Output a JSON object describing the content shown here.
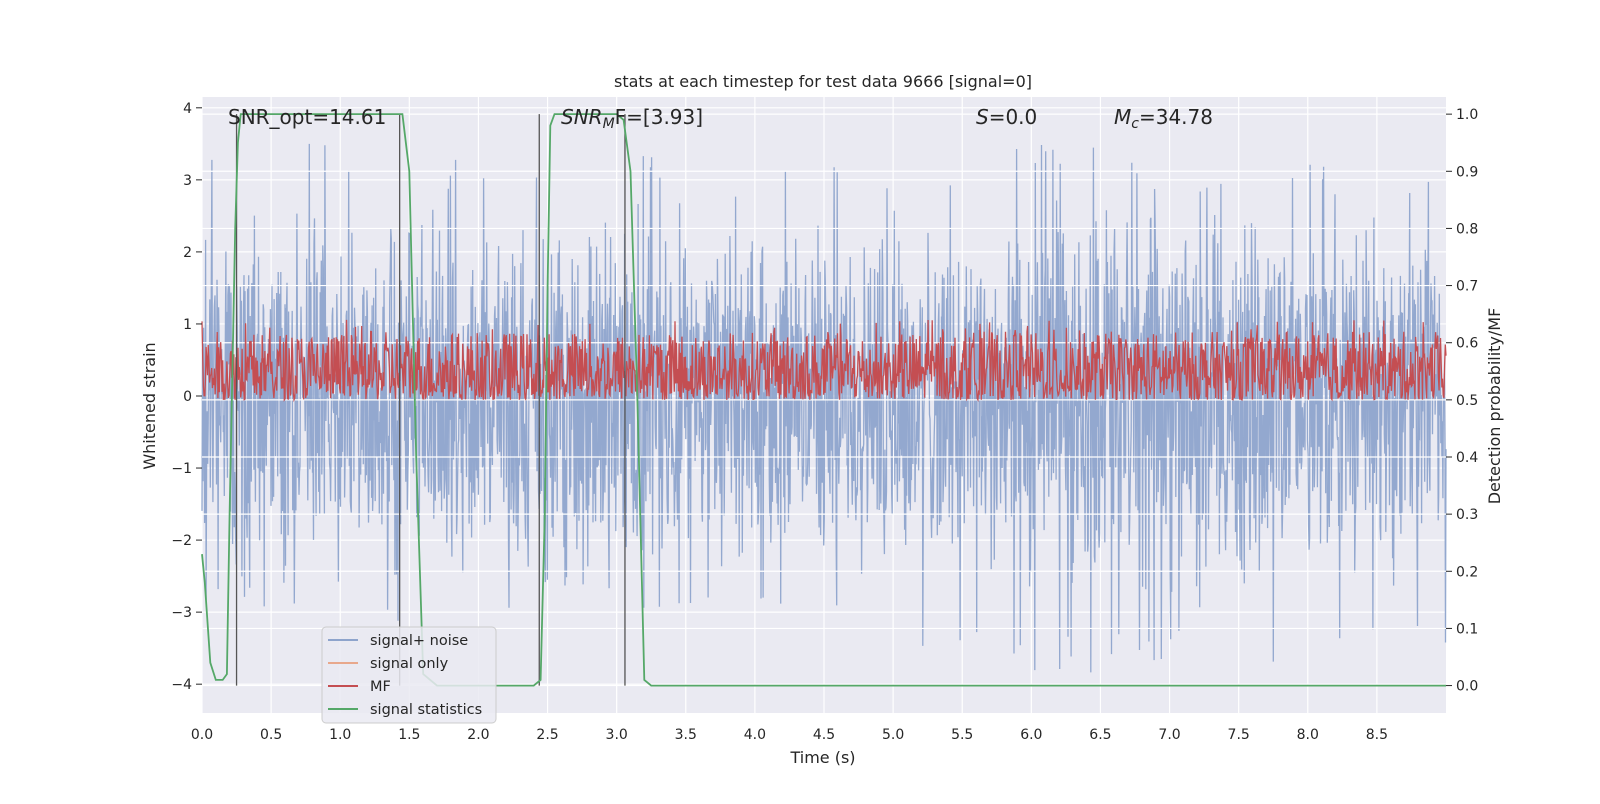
{
  "chart_data": {
    "type": "line",
    "title": "stats at each timestep for test data 9666 [signal=0]",
    "xlabel": "Time (s)",
    "ylabel": "Whitened strain",
    "y2label": "Detection probability/MF",
    "xlim": [
      0.0,
      9.0
    ],
    "ylim": [
      -4.4,
      4.15
    ],
    "y2lim": [
      -0.048,
      1.03
    ],
    "xticks": [
      "0.0",
      "0.5",
      "1.0",
      "1.5",
      "2.0",
      "2.5",
      "3.0",
      "3.5",
      "4.0",
      "4.5",
      "5.0",
      "5.5",
      "6.0",
      "6.5",
      "7.0",
      "7.5",
      "8.0",
      "8.5"
    ],
    "yticks": [
      "−4",
      "−3",
      "−2",
      "−1",
      "0",
      "1",
      "2",
      "3",
      "4"
    ],
    "y2ticks": [
      "0.0",
      "0.1",
      "0.2",
      "0.3",
      "0.4",
      "0.5",
      "0.6",
      "0.7",
      "0.8",
      "0.9",
      "1.0"
    ],
    "grid": true,
    "legend_position": "lower-left",
    "annotations": {
      "snr_opt": "SNR_opt=14.61",
      "snr_mf_sym": "SNR",
      "snr_mf_sub": "M",
      "snr_mf_rest": "F=[3.93]",
      "s_sym": "S",
      "s_rest": "=0.0",
      "mc_sym": "M",
      "mc_sub": "c",
      "mc_rest": "=34.78"
    },
    "series": [
      {
        "name": "signal+ noise",
        "color": "#8ea4cc",
        "envelope_note": "dense noise, whitened strain",
        "x": [
          0.0,
          0.5,
          1.0,
          1.5,
          2.0,
          2.5,
          3.0,
          3.5,
          4.0,
          4.5,
          5.0,
          5.5,
          6.0,
          6.5,
          7.0,
          7.5,
          8.0,
          8.5,
          9.0
        ],
        "max": [
          3.6,
          3.5,
          3.5,
          3.3,
          3.4,
          3.5,
          3.8,
          3.0,
          3.1,
          3.3,
          3.0,
          3.2,
          3.6,
          3.5,
          3.3,
          3.2,
          3.3,
          3.2,
          3.3
        ],
        "min": [
          -3.1,
          -3.0,
          -3.2,
          -3.4,
          -3.0,
          -3.0,
          -3.3,
          -3.2,
          -3.2,
          -3.3,
          -3.4,
          -3.6,
          -3.9,
          -3.9,
          -3.8,
          -4.0,
          -3.6,
          -3.5,
          -3.8
        ]
      },
      {
        "name": "signal only",
        "color": "#e8a88c",
        "x": [
          0.0,
          9.0
        ],
        "y": [
          0.0,
          0.0
        ]
      },
      {
        "name": "MF",
        "color": "#c44e52",
        "axis": "right",
        "baseline": 0.52,
        "band": [
          0.5,
          0.62
        ],
        "peak": 0.64
      },
      {
        "name": "signal statistics",
        "color": "#55a868",
        "axis": "right",
        "x": [
          0.0,
          0.02,
          0.06,
          0.1,
          0.15,
          0.18,
          0.2,
          0.22,
          0.24,
          0.26,
          0.28,
          0.3,
          0.32,
          0.35,
          0.5,
          1.0,
          1.4,
          1.45,
          1.5,
          1.55,
          1.6,
          1.7,
          2.0,
          2.3,
          2.4,
          2.45,
          2.48,
          2.5,
          2.52,
          2.55,
          2.6,
          3.0,
          3.05,
          3.1,
          3.15,
          3.2,
          3.25,
          3.3,
          4.0,
          9.0
        ],
        "y": [
          0.23,
          0.18,
          0.04,
          0.01,
          0.01,
          0.02,
          0.3,
          0.55,
          0.8,
          0.95,
          1.0,
          1.0,
          1.0,
          1.0,
          1.0,
          1.0,
          1.0,
          1.0,
          0.9,
          0.4,
          0.02,
          0.0,
          0.0,
          0.0,
          0.0,
          0.01,
          0.3,
          0.7,
          0.98,
          1.0,
          1.0,
          1.0,
          0.99,
          0.9,
          0.5,
          0.01,
          0.0,
          0.0,
          0.0,
          0.0
        ]
      }
    ],
    "vertical_markers": [
      {
        "x": 0.25,
        "y_range": [
          0.0,
          1.0
        ]
      },
      {
        "x": 1.43,
        "y_range": [
          0.0,
          1.0
        ]
      },
      {
        "x": 2.44,
        "y_range": [
          0.0,
          1.0
        ]
      },
      {
        "x": 3.06,
        "y_range": [
          0.0,
          1.0
        ]
      }
    ]
  }
}
